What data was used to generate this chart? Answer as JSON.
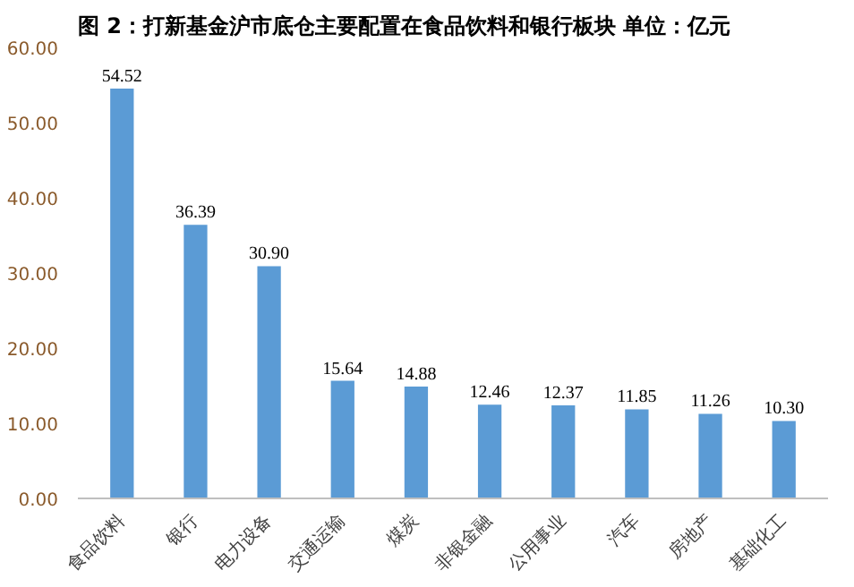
{
  "chart_data": {
    "type": "bar",
    "title": "图 2：打新基金沪市底仓主要配置在食品饮料和银行板块    单位：亿元",
    "categories": [
      "食品饮料",
      "银行",
      "电力设备",
      "交通运输",
      "煤炭",
      "非银金融",
      "公用事业",
      "汽车",
      "房地产",
      "基础化工"
    ],
    "values": [
      54.52,
      36.39,
      30.9,
      15.64,
      14.88,
      12.46,
      12.37,
      11.85,
      11.26,
      10.3
    ],
    "value_labels": [
      "54.52",
      "36.39",
      "30.90",
      "15.64",
      "14.88",
      "12.46",
      "12.37",
      "11.85",
      "11.26",
      "10.30"
    ],
    "color": "#5b9bd5",
    "ylim": [
      0,
      60
    ],
    "yticks": [
      {
        "value": 0,
        "label": "0.00"
      },
      {
        "value": 10,
        "label": "10.00"
      },
      {
        "value": 20,
        "label": "20.00"
      },
      {
        "value": 30,
        "label": "30.00"
      },
      {
        "value": 40,
        "label": "40.00"
      },
      {
        "value": 50,
        "label": "50.00"
      },
      {
        "value": 60,
        "label": "60.00"
      }
    ],
    "grid": false
  }
}
